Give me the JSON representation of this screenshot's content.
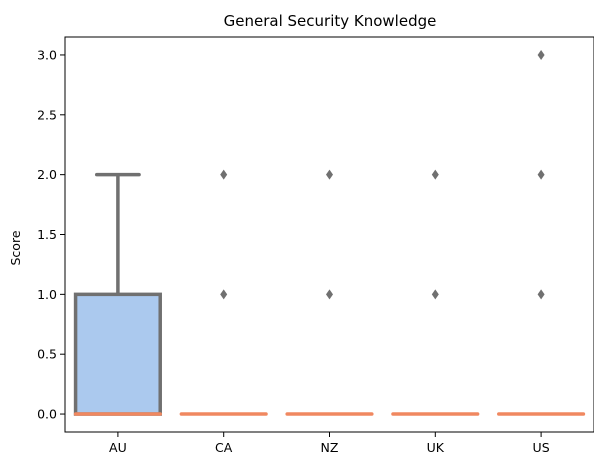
{
  "chart_data": {
    "type": "box",
    "title": "General Security Knowledge",
    "xlabel": "",
    "ylabel": "Score",
    "categories": [
      "AU",
      "CA",
      "NZ",
      "UK",
      "US"
    ],
    "ylim": [
      -0.15,
      3.15
    ],
    "yticks": [
      "0.0",
      "0.5",
      "1.0",
      "1.5",
      "2.0",
      "2.5",
      "3.0"
    ],
    "boxes": [
      {
        "category": "AU",
        "whisker_low": 0,
        "q1": 0,
        "median": 0,
        "q3": 1,
        "whisker_high": 2,
        "outliers": []
      },
      {
        "category": "CA",
        "whisker_low": 0,
        "q1": 0,
        "median": 0,
        "q3": 0,
        "whisker_high": 0,
        "outliers": [
          1,
          2
        ]
      },
      {
        "category": "NZ",
        "whisker_low": 0,
        "q1": 0,
        "median": 0,
        "q3": 0,
        "whisker_high": 0,
        "outliers": [
          1,
          2
        ]
      },
      {
        "category": "UK",
        "whisker_low": 0,
        "q1": 0,
        "median": 0,
        "q3": 0,
        "whisker_high": 0,
        "outliers": [
          1,
          2
        ]
      },
      {
        "category": "US",
        "whisker_low": 0,
        "q1": 0,
        "median": 0,
        "q3": 0,
        "whisker_high": 0,
        "outliers": [
          1,
          2,
          3
        ]
      }
    ],
    "colors": {
      "box_fill": "#abc9ee",
      "box_edge": "#707070",
      "median": "#f08860",
      "outlier": "#707070",
      "axis": "#000000"
    },
    "grid": false
  }
}
